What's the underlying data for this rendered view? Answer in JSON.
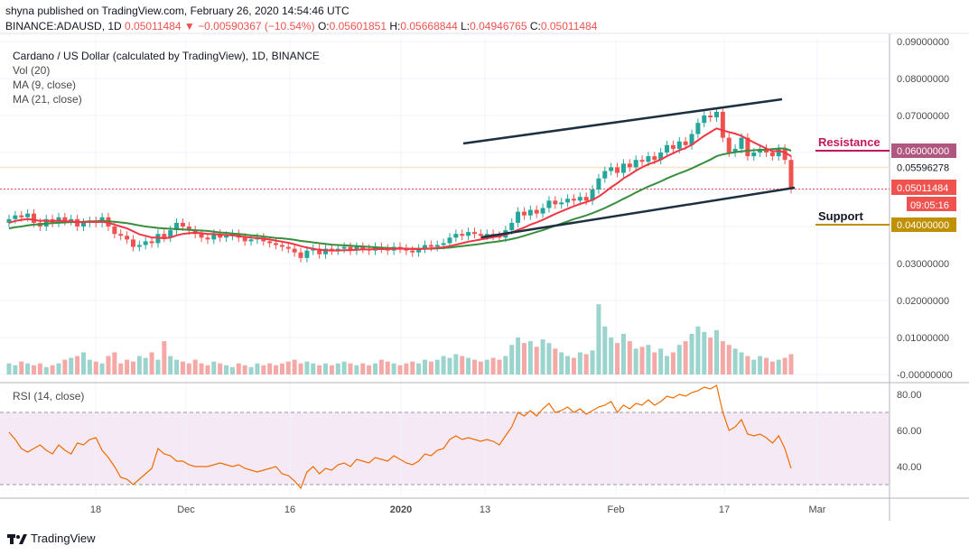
{
  "header": {
    "line1": "shyna published on TradingView.com, February 26, 2020 14:54:46 UTC",
    "symbol": "BINANCE:ADAUSD, 1D",
    "last": "0.05011484",
    "change_arrow": "▼",
    "change": "−0.00590367 (−10.54%)",
    "o_label": "O:",
    "o": "0.05601851",
    "h_label": "H:",
    "h": "0.05668844",
    "l_label": "L:",
    "l": "0.04946765",
    "c_label": "C:",
    "c": "0.05011484"
  },
  "indicators": {
    "title": "Cardano / US Dollar (calculated by TradingView), 1D, BINANCE",
    "vol": "Vol (20)",
    "ma9": "MA (9, close)",
    "ma21": "MA (21, close)",
    "rsi": "RSI (14, close)"
  },
  "brand": {
    "name": "TradingView",
    "icon": "tradingview-logo-icon"
  },
  "annotations": {
    "resistance": "Resistance",
    "support": "Support"
  },
  "colors": {
    "up": "#26a69a",
    "down": "#ef5350",
    "ma9": "#f23645",
    "ma21": "#388e3c",
    "rsi": "#ef6c00",
    "resistance": "#c2185b",
    "support": "#bf9000"
  },
  "chart_data": {
    "type": "candlestick",
    "x_ticks": [
      "18",
      "Dec",
      "16",
      "2020",
      "13",
      "Feb",
      "17",
      "Mar"
    ],
    "price_axis_ticks": [
      "0.09000000",
      "0.08000000",
      "0.07000000",
      "0.06000000",
      "0.03000000",
      "0.02000000",
      "0.01000000",
      "-0.00000000"
    ],
    "price_labels": {
      "resistance": "0.06000000",
      "ma": "0.05596278",
      "last": "0.05011484",
      "countdown": "09:05:16",
      "support": "0.04000000"
    },
    "ylim": [
      0.0,
      0.09
    ],
    "rsi_ticks": [
      "80.00",
      "60.00",
      "40.00"
    ],
    "rsi_range": [
      30,
      70
    ],
    "close": [
      0.042,
      0.043,
      0.0425,
      0.0435,
      0.041,
      0.04,
      0.042,
      0.041,
      0.0425,
      0.0415,
      0.042,
      0.04,
      0.041,
      0.0415,
      0.041,
      0.0425,
      0.04,
      0.038,
      0.0375,
      0.0365,
      0.0345,
      0.035,
      0.036,
      0.0355,
      0.038,
      0.037,
      0.039,
      0.041,
      0.04,
      0.039,
      0.038,
      0.037,
      0.0365,
      0.038,
      0.037,
      0.0375,
      0.038,
      0.037,
      0.036,
      0.0365,
      0.037,
      0.036,
      0.0355,
      0.035,
      0.0345,
      0.034,
      0.033,
      0.0315,
      0.0335,
      0.034,
      0.0325,
      0.034,
      0.0335,
      0.034,
      0.0345,
      0.0335,
      0.0345,
      0.034,
      0.0335,
      0.0345,
      0.034,
      0.0335,
      0.0345,
      0.034,
      0.0335,
      0.033,
      0.034,
      0.035,
      0.0345,
      0.035,
      0.0355,
      0.037,
      0.038,
      0.0375,
      0.0385,
      0.038,
      0.0375,
      0.038,
      0.0375,
      0.037,
      0.039,
      0.041,
      0.044,
      0.043,
      0.0445,
      0.0435,
      0.045,
      0.047,
      0.046,
      0.0465,
      0.0475,
      0.047,
      0.048,
      0.047,
      0.05,
      0.053,
      0.055,
      0.056,
      0.0545,
      0.057,
      0.056,
      0.058,
      0.0575,
      0.059,
      0.058,
      0.06,
      0.062,
      0.061,
      0.063,
      0.062,
      0.065,
      0.068,
      0.07,
      0.0695,
      0.071,
      0.064,
      0.06,
      0.061,
      0.064,
      0.059,
      0.06,
      0.061,
      0.06,
      0.059,
      0.061,
      0.058,
      0.0501
    ],
    "ma9": [
      0.041,
      0.0415,
      0.0418,
      0.042,
      0.0418,
      0.0415,
      0.0416,
      0.0414,
      0.0416,
      0.0414,
      0.0414,
      0.0412,
      0.0412,
      0.0413,
      0.0412,
      0.0413,
      0.041,
      0.0405,
      0.04,
      0.0395,
      0.0387,
      0.0379,
      0.0375,
      0.037,
      0.037,
      0.0368,
      0.037,
      0.0376,
      0.038,
      0.0382,
      0.0383,
      0.0382,
      0.038,
      0.038,
      0.0378,
      0.0377,
      0.0376,
      0.0374,
      0.0372,
      0.037,
      0.0369,
      0.0367,
      0.0365,
      0.0362,
      0.0359,
      0.0356,
      0.0352,
      0.0347,
      0.0343,
      0.034,
      0.0337,
      0.0336,
      0.0335,
      0.0335,
      0.0336,
      0.0336,
      0.0337,
      0.0338,
      0.0338,
      0.0339,
      0.0339,
      0.0339,
      0.034,
      0.034,
      0.034,
      0.0339,
      0.0339,
      0.034,
      0.0341,
      0.0342,
      0.0344,
      0.0347,
      0.0351,
      0.0355,
      0.0359,
      0.0362,
      0.0365,
      0.0368,
      0.0371,
      0.0374,
      0.0378,
      0.0384,
      0.0391,
      0.0397,
      0.0405,
      0.0411,
      0.0418,
      0.0426,
      0.0434,
      0.0441,
      0.0448,
      0.0455,
      0.0461,
      0.0466,
      0.0472,
      0.0481,
      0.0493,
      0.0506,
      0.0517,
      0.053,
      0.054,
      0.0551,
      0.056,
      0.0568,
      0.0574,
      0.0581,
      0.059,
      0.0598,
      0.0606,
      0.0612,
      0.0621,
      0.0633,
      0.0645,
      0.0655,
      0.0665,
      0.066,
      0.0655,
      0.0651,
      0.0645,
      0.0636,
      0.0627,
      0.0619,
      0.0611,
      0.0603,
      0.0605,
      0.06,
      0.059
    ],
    "ma21": [
      0.0395,
      0.0398,
      0.04,
      0.0403,
      0.0405,
      0.0406,
      0.0408,
      0.0409,
      0.041,
      0.0411,
      0.0412,
      0.0412,
      0.0413,
      0.0414,
      0.0414,
      0.0415,
      0.0414,
      0.0413,
      0.0411,
      0.0409,
      0.0406,
      0.0403,
      0.04,
      0.0398,
      0.0396,
      0.0395,
      0.0394,
      0.0393,
      0.0392,
      0.0391,
      0.039,
      0.0389,
      0.0388,
      0.0386,
      0.0384,
      0.0383,
      0.0381,
      0.038,
      0.0378,
      0.0376,
      0.0375,
      0.0373,
      0.0371,
      0.0369,
      0.0368,
      0.0366,
      0.0364,
      0.0361,
      0.0359,
      0.0357,
      0.0355,
      0.0353,
      0.0351,
      0.035,
      0.0349,
      0.0348,
      0.0347,
      0.0346,
      0.0345,
      0.0344,
      0.0343,
      0.0342,
      0.0341,
      0.0341,
      0.034,
      0.034,
      0.034,
      0.034,
      0.034,
      0.0341,
      0.0342,
      0.0343,
      0.0345,
      0.0347,
      0.0349,
      0.0351,
      0.0353,
      0.0356,
      0.0358,
      0.036,
      0.0363,
      0.0366,
      0.037,
      0.0375,
      0.038,
      0.0385,
      0.039,
      0.0396,
      0.0402,
      0.0408,
      0.0414,
      0.042,
      0.0425,
      0.043,
      0.0436,
      0.0443,
      0.045,
      0.0458,
      0.0466,
      0.0475,
      0.0483,
      0.0492,
      0.05,
      0.0508,
      0.0515,
      0.0522,
      0.053,
      0.0537,
      0.0544,
      0.055,
      0.0557,
      0.0565,
      0.0573,
      0.0581,
      0.059,
      0.0595,
      0.0598,
      0.0601,
      0.0603,
      0.0605,
      0.0606,
      0.0607,
      0.0608,
      0.0609,
      0.0611,
      0.0611,
      0.0605
    ],
    "volume": [
      0.003,
      0.0025,
      0.0035,
      0.003,
      0.0025,
      0.003,
      0.002,
      0.0025,
      0.003,
      0.004,
      0.0045,
      0.005,
      0.006,
      0.004,
      0.0035,
      0.003,
      0.005,
      0.006,
      0.003,
      0.004,
      0.0035,
      0.005,
      0.0045,
      0.006,
      0.004,
      0.009,
      0.005,
      0.004,
      0.0035,
      0.003,
      0.004,
      0.003,
      0.0025,
      0.0035,
      0.003,
      0.0025,
      0.002,
      0.003,
      0.0025,
      0.002,
      0.003,
      0.0025,
      0.003,
      0.0025,
      0.003,
      0.0035,
      0.004,
      0.003,
      0.0035,
      0.003,
      0.0025,
      0.003,
      0.0025,
      0.003,
      0.0035,
      0.003,
      0.0025,
      0.003,
      0.0025,
      0.003,
      0.004,
      0.0035,
      0.003,
      0.0025,
      0.003,
      0.0035,
      0.003,
      0.004,
      0.0035,
      0.004,
      0.005,
      0.0045,
      0.0055,
      0.005,
      0.0045,
      0.004,
      0.0035,
      0.004,
      0.0045,
      0.004,
      0.005,
      0.008,
      0.01,
      0.0085,
      0.009,
      0.0075,
      0.0095,
      0.0085,
      0.007,
      0.006,
      0.005,
      0.0045,
      0.006,
      0.0055,
      0.0065,
      0.019,
      0.013,
      0.01,
      0.0085,
      0.011,
      0.009,
      0.007,
      0.0075,
      0.008,
      0.006,
      0.007,
      0.005,
      0.006,
      0.008,
      0.009,
      0.011,
      0.013,
      0.0115,
      0.01,
      0.012,
      0.009,
      0.008,
      0.007,
      0.006,
      0.005,
      0.004,
      0.005,
      0.0045,
      0.0035,
      0.004,
      0.0045,
      0.0055
    ],
    "rsi": [
      59,
      55,
      50,
      48,
      50,
      52,
      49,
      47,
      52,
      49,
      47,
      53,
      52,
      55,
      56,
      49,
      45,
      40,
      34,
      33,
      30,
      33,
      36,
      39,
      50,
      47,
      46,
      43,
      43,
      41,
      40,
      40,
      40,
      41,
      42,
      41,
      40,
      41,
      39,
      38,
      37,
      38,
      39,
      40,
      36,
      35,
      32,
      28,
      37,
      40,
      36,
      39,
      38,
      41,
      42,
      40,
      44,
      43,
      42,
      45,
      44,
      43,
      46,
      44,
      42,
      41,
      43,
      47,
      46,
      49,
      50,
      55,
      57,
      55,
      56,
      55,
      54,
      55,
      54,
      52,
      57,
      62,
      70,
      68,
      71,
      68,
      72,
      75,
      70,
      71,
      73,
      70,
      72,
      69,
      71,
      73,
      74,
      76,
      70,
      74,
      72,
      75,
      74,
      77,
      74,
      76,
      79,
      78,
      80,
      79,
      81,
      82,
      84,
      83,
      85,
      70,
      60,
      62,
      66,
      58,
      57,
      58,
      56,
      53,
      57,
      50,
      39
    ]
  }
}
